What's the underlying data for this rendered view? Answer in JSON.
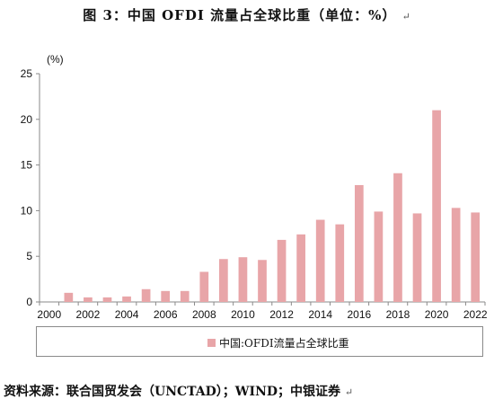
{
  "figure": {
    "title": "图 3：中国 OFDI 流量占全球比重（单位：%）",
    "title_mark": "↵",
    "source": "资料来源：联合国贸发会（UNCTAD）；WIND；中银证券",
    "source_mark": "↵"
  },
  "chart_data": {
    "type": "bar",
    "unit_label": "(%)",
    "x": [
      2001,
      2002,
      2003,
      2004,
      2005,
      2006,
      2007,
      2008,
      2009,
      2010,
      2011,
      2012,
      2013,
      2014,
      2015,
      2016,
      2017,
      2018,
      2019,
      2020,
      2021,
      2022
    ],
    "series": [
      {
        "name": "中国:OFDI流量占全球比重",
        "values": [
          1.0,
          0.5,
          0.5,
          0.6,
          1.4,
          1.2,
          1.2,
          3.3,
          4.7,
          4.9,
          4.6,
          6.8,
          7.4,
          9.0,
          8.5,
          12.8,
          9.9,
          14.1,
          9.7,
          21.0,
          10.3,
          9.8
        ],
        "color": "#e8a5a8"
      }
    ],
    "xlim": [
      2000,
      2022
    ],
    "x_ticks": [
      2000,
      2002,
      2004,
      2006,
      2008,
      2010,
      2012,
      2014,
      2016,
      2018,
      2020,
      2022
    ],
    "ylim": [
      0,
      25
    ],
    "y_ticks": [
      0,
      5,
      10,
      15,
      20,
      25
    ],
    "grid": false,
    "legend_position": "bottom"
  }
}
